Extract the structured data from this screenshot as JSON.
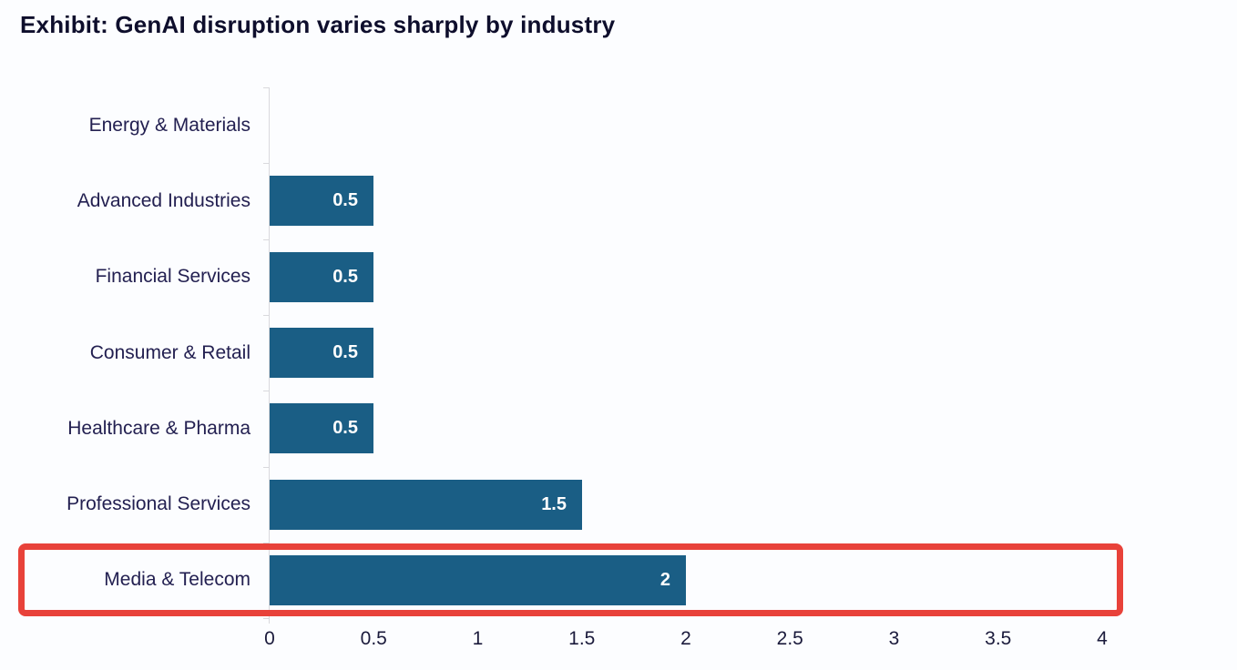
{
  "title": "Exhibit: GenAI disruption varies sharply by industry",
  "chart_data": {
    "type": "bar",
    "orientation": "horizontal",
    "title": "Exhibit: GenAI disruption varies sharply by industry",
    "categories": [
      "Energy & Materials",
      "Advanced Industries",
      "Financial Services",
      "Consumer & Retail",
      "Healthcare & Pharma",
      "Professional Services",
      "Media & Telecom"
    ],
    "values": [
      0,
      0.5,
      0.5,
      0.5,
      0.5,
      1.5,
      2
    ],
    "value_labels": [
      "",
      "0.5",
      "0.5",
      "0.5",
      "0.5",
      "1.5",
      "2"
    ],
    "x_ticks": [
      "0",
      "0.5",
      "1",
      "1.5",
      "2",
      "2.5",
      "3",
      "3.5",
      "4"
    ],
    "x_tick_values": [
      0,
      0.5,
      1,
      1.5,
      2,
      2.5,
      3,
      3.5,
      4
    ],
    "xlim": [
      0,
      4
    ],
    "xlabel": "",
    "ylabel": "",
    "grid": false,
    "legend": false,
    "bar_color": "#1a5e85",
    "category_label_color": "#232051",
    "value_label_color": "#ffffff",
    "axis_color": "#d9d9dd",
    "highlight": {
      "category": "Media & Telecom",
      "style": "red-outline-box",
      "color": "#e8423a"
    }
  }
}
